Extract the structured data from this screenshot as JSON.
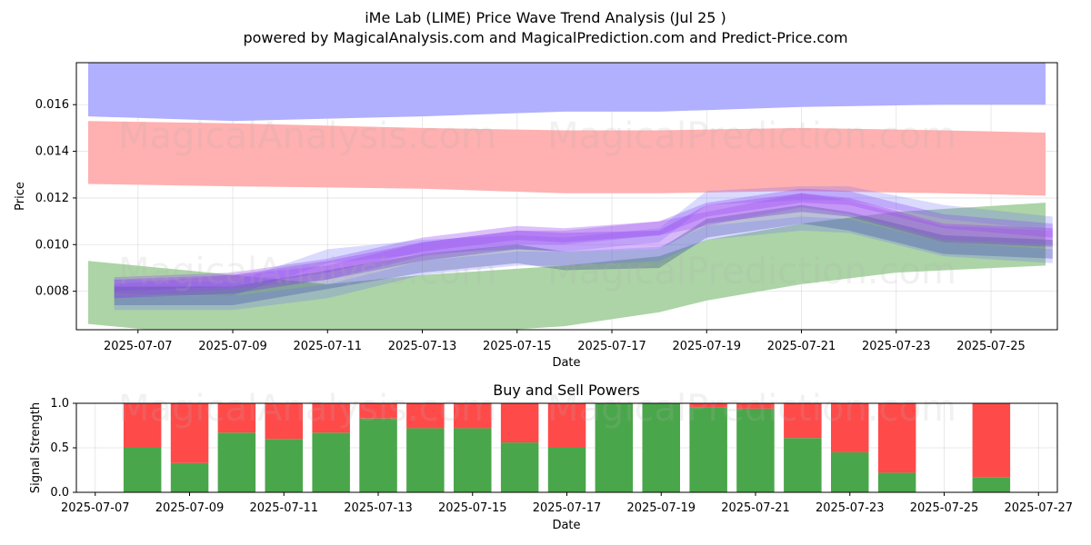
{
  "figure": {
    "title": "iMe Lab (LIME) Price Wave Trend Analysis (Jul 25 )",
    "subtitle": "powered by MagicalAnalysis.com and MagicalPrediction.com and Predict-Price.com",
    "watermark_left": "MagicalAnalysis.com",
    "watermark_right": "MagicalPrediction.com"
  },
  "chart_data": [
    {
      "type": "area",
      "name": "price-wave-chart",
      "title": "",
      "xlabel": "Date",
      "ylabel": "Price",
      "xlim": [
        "2025-07-05.7",
        "2025-07-26.4"
      ],
      "ylim": [
        0.00635,
        0.0178
      ],
      "grid": true,
      "x_ticks": [
        "2025-07-07",
        "2025-07-09",
        "2025-07-11",
        "2025-07-13",
        "2025-07-15",
        "2025-07-17",
        "2025-07-19",
        "2025-07-21",
        "2025-07-23",
        "2025-07-25"
      ],
      "y_ticks": [
        "0.008",
        "0.010",
        "0.012",
        "0.014",
        "0.016"
      ],
      "colors": {
        "blue_band": "#b0b0ff",
        "red_band": "#ffb0b0",
        "green_band": "#acd4a6",
        "wave_blue": "#6c6cff",
        "wave_purple": "#9a4df0",
        "wave_dark": "#3a4a8a"
      },
      "bands": [
        {
          "color": "blue",
          "x": [
            "2025-07-05.95",
            "2025-07-09",
            "2025-07-13",
            "2025-07-16",
            "2025-07-18",
            "2025-07-21",
            "2025-07-24",
            "2025-07-26.15"
          ],
          "upper": [
            0.0182,
            0.0182,
            0.0182,
            0.0182,
            0.0182,
            0.0182,
            0.0182,
            0.0182
          ],
          "lower": [
            0.0155,
            0.0153,
            0.0155,
            0.0157,
            0.0157,
            0.0159,
            0.016,
            0.016
          ]
        },
        {
          "color": "red",
          "x": [
            "2025-07-05.95",
            "2025-07-09",
            "2025-07-13",
            "2025-07-16",
            "2025-07-18",
            "2025-07-21",
            "2025-07-24",
            "2025-07-26.15"
          ],
          "upper": [
            0.0153,
            0.0152,
            0.015,
            0.0149,
            0.0149,
            0.015,
            0.0149,
            0.0148
          ],
          "lower": [
            0.0126,
            0.0125,
            0.0124,
            0.0122,
            0.0122,
            0.0123,
            0.0122,
            0.0121
          ]
        },
        {
          "color": "green",
          "x": [
            "2025-07-05.95",
            "2025-07-08",
            "2025-07-11",
            "2025-07-13",
            "2025-07-16",
            "2025-07-18",
            "2025-07-19",
            "2025-07-21",
            "2025-07-23",
            "2025-07-26.15"
          ],
          "upper": [
            0.0093,
            0.0089,
            0.0083,
            0.0087,
            0.0091,
            0.0095,
            0.0102,
            0.0109,
            0.0114,
            0.0118
          ],
          "lower": [
            0.0066,
            0.0062,
            0.0059,
            0.0061,
            0.0065,
            0.0071,
            0.0076,
            0.0083,
            0.0088,
            0.0091
          ]
        }
      ],
      "wave_x": [
        "2025-07-06.5",
        "2025-07-09",
        "2025-07-11",
        "2025-07-13",
        "2025-07-15",
        "2025-07-16",
        "2025-07-18",
        "2025-07-19",
        "2025-07-21",
        "2025-07-22",
        "2025-07-24",
        "2025-07-26.3"
      ],
      "wave_center": [
        0.008,
        0.0081,
        0.0087,
        0.0095,
        0.0099,
        0.0099,
        0.0101,
        0.0111,
        0.0116,
        0.0114,
        0.0104,
        0.0101
      ],
      "waves": [
        {
          "color": "purple",
          "offsets": [
            0.0003,
            0.0004,
            0.0004,
            0.0005,
            0.0006,
            0.0005,
            0.0006,
            0.0004,
            0.0005,
            0.0006,
            0.0006,
            0.0005
          ],
          "half_width": 0.0003,
          "opacity": 0.35
        },
        {
          "color": "blue",
          "offsets": [
            0.0002,
            0.0,
            0.0008,
            0.0004,
            0.0002,
            0.0001,
            0.0003,
            0.0009,
            0.0006,
            0.0008,
            0.001,
            0.0008
          ],
          "half_width": 0.0003,
          "opacity": 0.25
        },
        {
          "color": "purple",
          "offsets": [
            0.0001,
            0.0002,
            0.0002,
            0.0002,
            0.0003,
            0.0002,
            0.0001,
            0.0002,
            0.0002,
            0.0002,
            0.0001,
            0.0002
          ],
          "half_width": 0.0004,
          "opacity": 0.4
        },
        {
          "color": "dark",
          "offsets": [
            -0.0002,
            -0.0003,
            -0.0002,
            -0.0003,
            -0.0003,
            -0.0006,
            -0.0007,
            -0.0004,
            -0.0003,
            -0.0004,
            -0.0004,
            -0.0003
          ],
          "half_width": 0.0004,
          "opacity": 0.35
        },
        {
          "color": "blue",
          "offsets": [
            -0.0005,
            -0.0006,
            -0.0007,
            -0.0005,
            -0.0005,
            -0.0005,
            -0.0005,
            -0.0006,
            -0.0007,
            -0.0006,
            -0.0006,
            -0.0006
          ],
          "half_width": 0.0003,
          "opacity": 0.25
        },
        {
          "color": "purple",
          "offsets": [
            0.0,
            0.0003,
            0.0001,
            0.0003,
            0.0004,
            0.0004,
            0.0006,
            0.0,
            0.0003,
            0.0002,
            0.0001,
            0.0002
          ],
          "half_width": 0.0003,
          "opacity": 0.3
        }
      ]
    },
    {
      "type": "bar",
      "name": "buy-sell-powers",
      "title": "Buy and Sell Powers",
      "xlabel": "Date",
      "ylabel": "Signal Strength",
      "xlim": [
        "2025-07-06.6",
        "2025-07-27.4"
      ],
      "ylim": [
        0,
        1
      ],
      "grid": true,
      "x_ticks": [
        "2025-07-07",
        "2025-07-09",
        "2025-07-11",
        "2025-07-13",
        "2025-07-15",
        "2025-07-17",
        "2025-07-19",
        "2025-07-21",
        "2025-07-23",
        "2025-07-25",
        "2025-07-27"
      ],
      "y_ticks": [
        "0.0",
        "0.5",
        "1.0"
      ],
      "colors": {
        "buy": "#4aa64a",
        "sell": "#ff4a4a"
      },
      "categories": [
        "2025-07-08",
        "2025-07-09",
        "2025-07-10",
        "2025-07-11",
        "2025-07-12",
        "2025-07-13",
        "2025-07-14",
        "2025-07-15",
        "2025-07-16",
        "2025-07-17",
        "2025-07-18",
        "2025-07-19",
        "2025-07-20",
        "2025-07-21",
        "2025-07-22",
        "2025-07-23",
        "2025-07-24",
        "2025-07-26"
      ],
      "series": [
        {
          "name": "buy",
          "values": [
            0.5,
            0.33,
            0.67,
            0.6,
            0.67,
            0.83,
            0.72,
            0.72,
            0.56,
            0.5,
            1.0,
            1.0,
            0.95,
            0.94,
            0.61,
            0.45,
            0.22,
            0.17
          ]
        },
        {
          "name": "sell",
          "values": [
            0.5,
            0.67,
            0.33,
            0.4,
            0.33,
            0.17,
            0.28,
            0.28,
            0.44,
            0.5,
            0.0,
            0.0,
            0.05,
            0.06,
            0.39,
            0.55,
            0.78,
            0.83
          ]
        }
      ]
    }
  ]
}
